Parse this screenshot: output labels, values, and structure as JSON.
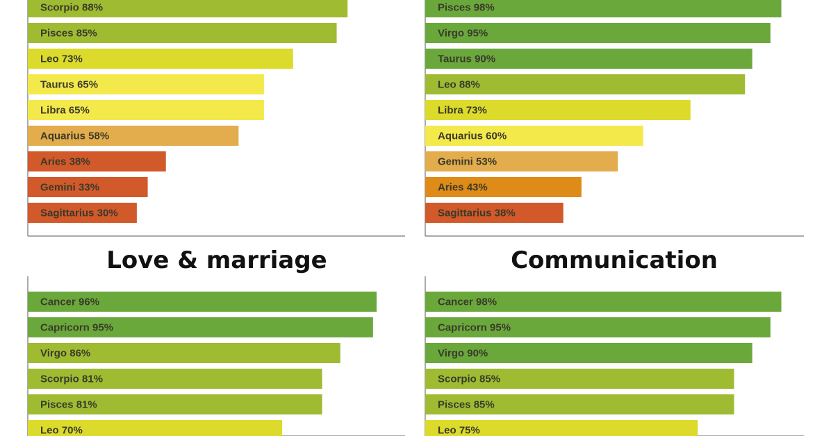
{
  "colors": {
    "green-dark": "#6aa83c",
    "green-mid": "#9fbb32",
    "yellow-green": "#dcdb2b",
    "yellow": "#f4e94a",
    "tan": "#e3ac4c",
    "orange": "#df8b17",
    "red-orange": "#d1592a"
  },
  "chart_data": [
    {
      "type": "bar",
      "title": "",
      "orientation": "horizontal",
      "xlim": [
        0,
        100
      ],
      "categories": [
        "Scorpio",
        "Pisces",
        "Leo",
        "Taurus",
        "Libra",
        "Aquarius",
        "Aries",
        "Gemini",
        "Sagittarius"
      ],
      "values": [
        88,
        85,
        73,
        65,
        65,
        58,
        38,
        33,
        30
      ],
      "labels": [
        "Scorpio 88%",
        "Pisces 85%",
        "Leo 73%",
        "Taurus 65%",
        "Libra 65%",
        "Aquarius 58%",
        "Aries 38%",
        "Gemini 33%",
        "Sagittarius 30%"
      ],
      "bar_colors": [
        "#9fbb32",
        "#9fbb32",
        "#dcdb2b",
        "#f4e94a",
        "#f4e94a",
        "#e3ac4c",
        "#d1592a",
        "#d1592a",
        "#d1592a"
      ]
    },
    {
      "type": "bar",
      "title": "",
      "orientation": "horizontal",
      "xlim": [
        0,
        100
      ],
      "categories": [
        "Pisces",
        "Virgo",
        "Taurus",
        "Leo",
        "Libra",
        "Aquarius",
        "Gemini",
        "Aries",
        "Sagittarius"
      ],
      "values": [
        98,
        95,
        90,
        88,
        73,
        60,
        53,
        43,
        38
      ],
      "labels": [
        "Pisces 98%",
        "Virgo 95%",
        "Taurus 90%",
        "Leo 88%",
        "Libra 73%",
        "Aquarius 60%",
        "Gemini 53%",
        "Aries 43%",
        "Sagittarius 38%"
      ],
      "bar_colors": [
        "#6aa83c",
        "#6aa83c",
        "#6aa83c",
        "#9fbb32",
        "#dcdb2b",
        "#f4e94a",
        "#e3ac4c",
        "#df8b17",
        "#d1592a"
      ]
    },
    {
      "type": "bar",
      "title": "Love & marriage",
      "orientation": "horizontal",
      "xlim": [
        0,
        100
      ],
      "categories": [
        "Cancer",
        "Capricorn",
        "Virgo",
        "Scorpio",
        "Pisces",
        "Leo"
      ],
      "values": [
        96,
        95,
        86,
        81,
        81,
        70
      ],
      "labels": [
        "Cancer 96%",
        "Capricorn 95%",
        "Virgo 86%",
        "Scorpio 81%",
        "Pisces 81%",
        "Leo 70%"
      ],
      "bar_colors": [
        "#6aa83c",
        "#6aa83c",
        "#9fbb32",
        "#9fbb32",
        "#9fbb32",
        "#dcdb2b"
      ]
    },
    {
      "type": "bar",
      "title": "Communication",
      "orientation": "horizontal",
      "xlim": [
        0,
        100
      ],
      "categories": [
        "Cancer",
        "Capricorn",
        "Virgo",
        "Scorpio",
        "Pisces",
        "Leo"
      ],
      "values": [
        98,
        95,
        90,
        85,
        85,
        75
      ],
      "labels": [
        "Cancer 98%",
        "Capricorn 95%",
        "Virgo 90%",
        "Scorpio 85%",
        "Pisces 85%",
        "Leo 75%"
      ],
      "bar_colors": [
        "#6aa83c",
        "#6aa83c",
        "#6aa83c",
        "#9fbb32",
        "#9fbb32",
        "#dcdb2b"
      ]
    }
  ]
}
